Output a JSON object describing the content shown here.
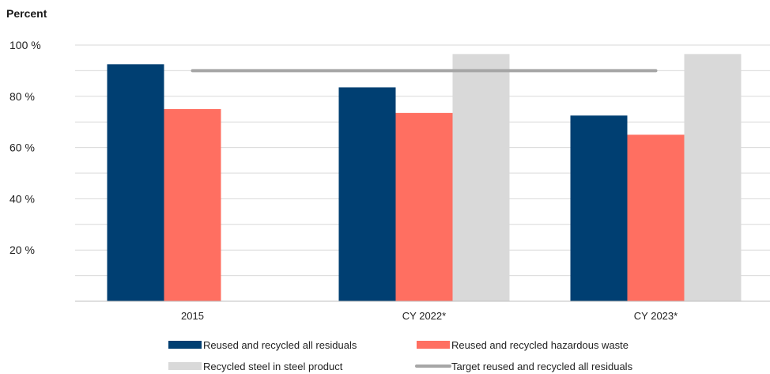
{
  "chart_data": {
    "type": "bar",
    "ylabel": "Percent",
    "ylim": [
      0,
      100
    ],
    "y_ticks": [
      {
        "value": 20,
        "label": "20 %"
      },
      {
        "value": 40,
        "label": "40 %"
      },
      {
        "value": 60,
        "label": "60 %"
      },
      {
        "value": 80,
        "label": "80 %"
      },
      {
        "value": 100,
        "label": "100 %"
      }
    ],
    "grid": true,
    "categories": [
      "2015",
      "CY 2022*",
      "CY 2023*"
    ],
    "series": [
      {
        "name": "Reused and recycled all residuals",
        "type": "bar",
        "color": "#003f72",
        "values": [
          92.5,
          83.5,
          72.5
        ]
      },
      {
        "name": "Reused and recycled hazardous waste",
        "type": "bar",
        "color": "#ff6f61",
        "values": [
          75,
          73.5,
          65
        ]
      },
      {
        "name": "Recycled steel in steel product",
        "type": "bar",
        "color": "#d9d9d9",
        "values": [
          null,
          96.5,
          96.5
        ]
      },
      {
        "name": "Target reused and recycled all residuals",
        "type": "line",
        "color": "#a6a6a6",
        "values": [
          90,
          90,
          90
        ]
      }
    ],
    "legend_position": "bottom"
  }
}
